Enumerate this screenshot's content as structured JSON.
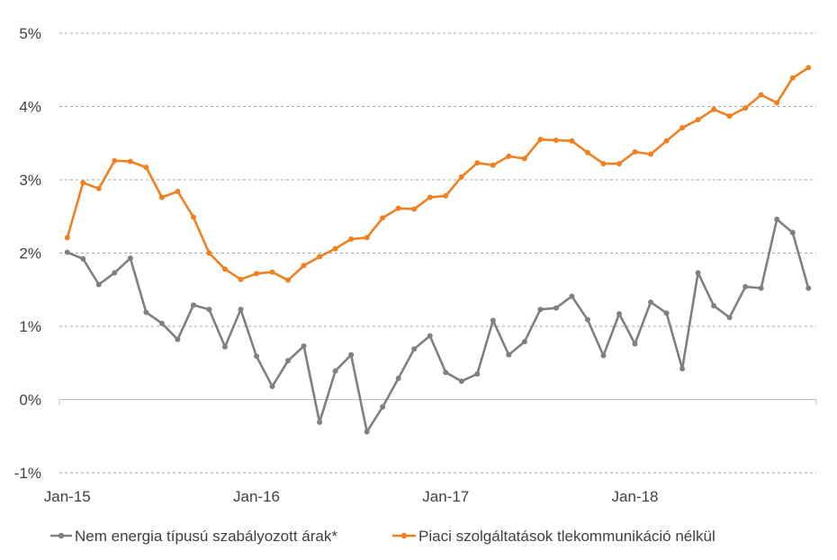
{
  "chart_data": {
    "type": "line",
    "title": "",
    "xlabel": "",
    "ylabel": "",
    "ylim": [
      -1,
      5
    ],
    "y_ticks": [
      "-1%",
      "0%",
      "1%",
      "2%",
      "3%",
      "4%",
      "5%"
    ],
    "x_tick_labels": [
      "Jan-15",
      "Jan-16",
      "Jan-17",
      "Jan-18"
    ],
    "x_tick_months": [
      0,
      12,
      24,
      36
    ],
    "grid": "horizontal dashed",
    "legend_position": "bottom",
    "months": 48,
    "series": [
      {
        "name": "Nem energia típusú szabályozott árak*",
        "color": "#808080",
        "values": [
          2.01,
          1.92,
          1.57,
          1.73,
          1.93,
          1.19,
          1.04,
          0.82,
          1.29,
          1.23,
          0.72,
          1.23,
          0.59,
          0.18,
          0.53,
          0.73,
          -0.31,
          0.39,
          0.61,
          -0.44,
          -0.1,
          0.29,
          0.69,
          0.87,
          0.37,
          0.25,
          0.35,
          1.08,
          0.61,
          0.79,
          1.23,
          1.25,
          1.41,
          1.09,
          0.6,
          1.17,
          0.76,
          1.33,
          1.18,
          0.42,
          1.73,
          1.28,
          1.12,
          1.54,
          1.52,
          2.46,
          2.28,
          1.52
        ]
      },
      {
        "name": "Piaci szolgáltatások tlekommunikáció nélkül",
        "color": "#f08020",
        "values": [
          2.21,
          2.96,
          2.88,
          3.26,
          3.25,
          3.17,
          2.76,
          2.84,
          2.49,
          2.0,
          1.78,
          1.64,
          1.72,
          1.74,
          1.63,
          1.83,
          1.95,
          2.06,
          2.19,
          2.21,
          2.48,
          2.61,
          2.6,
          2.76,
          2.78,
          3.04,
          3.23,
          3.2,
          3.32,
          3.29,
          3.55,
          3.54,
          3.53,
          3.37,
          3.22,
          3.22,
          3.38,
          3.35,
          3.53,
          3.71,
          3.82,
          3.96,
          3.87,
          3.98,
          4.16,
          4.05,
          4.39,
          4.53
        ]
      }
    ]
  }
}
